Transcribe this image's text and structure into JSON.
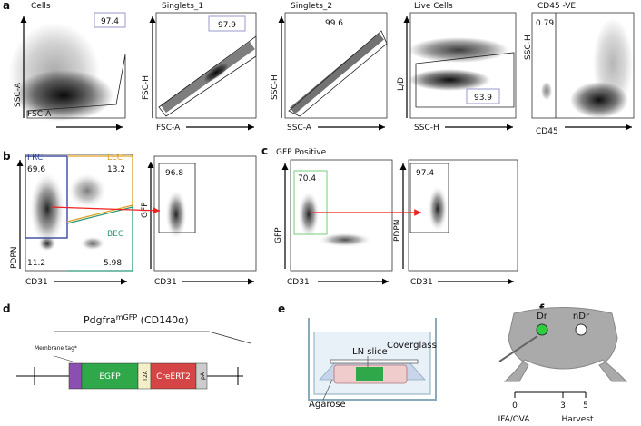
{
  "panels": {
    "a": {
      "label": "a",
      "plots": [
        {
          "title": "Cells",
          "x_label": "FSC-A",
          "y_label": "SSC-A",
          "gate": "97.4"
        },
        {
          "title": "Singlets_1",
          "x_label": "FSC-A",
          "y_label": "FSC-H",
          "gate": "97.9"
        },
        {
          "title": "Singlets_2",
          "x_label": "SSC-A",
          "y_label": "SSC-H",
          "gate": "99.6"
        },
        {
          "title": "Live Cells",
          "x_label": "SSC-H",
          "y_label": "L/D",
          "gate": "93.9"
        },
        {
          "title": "CD45 -VE",
          "x_label": "CD45",
          "y_label": "SSC-H",
          "gate": "0.79"
        }
      ]
    },
    "b": {
      "label": "b",
      "main": {
        "x_label": "CD31",
        "y_label": "PDPN",
        "gates": [
          {
            "name": "FRC",
            "value": "69.6"
          },
          {
            "name": "LEC",
            "value": "13.2"
          },
          {
            "name": "BEC",
            "value": "5.98"
          }
        ],
        "corner": "11.2"
      },
      "sub": {
        "x_label": "CD31",
        "y_label": "GFP",
        "gate": "96.8"
      }
    },
    "c": {
      "label": "c",
      "title": "GFP Positive",
      "main": {
        "x_label": "CD31",
        "y_label": "GFP",
        "gate": "70.4"
      },
      "sub": {
        "x_label": "CD31",
        "y_label": "PDPN",
        "gate": "97.4"
      }
    },
    "d": {
      "label": "d",
      "gene": "Pdgfra",
      "allele": "mGFP",
      "protein": " (CD140α)",
      "tag": "Membrane tag*",
      "elements": [
        "EGFP",
        "T2A",
        "CreERT2",
        "pA"
      ]
    },
    "e": {
      "label": "e",
      "slice": "LN slice",
      "cover": "Coverglass",
      "agarose": "Agarose"
    },
    "f": {
      "label": "f",
      "dr": "Dr",
      "ndr": "nDr",
      "days": [
        "0",
        "3",
        "5"
      ],
      "start": "IFA/OVA",
      "end": "Harvest"
    }
  }
}
